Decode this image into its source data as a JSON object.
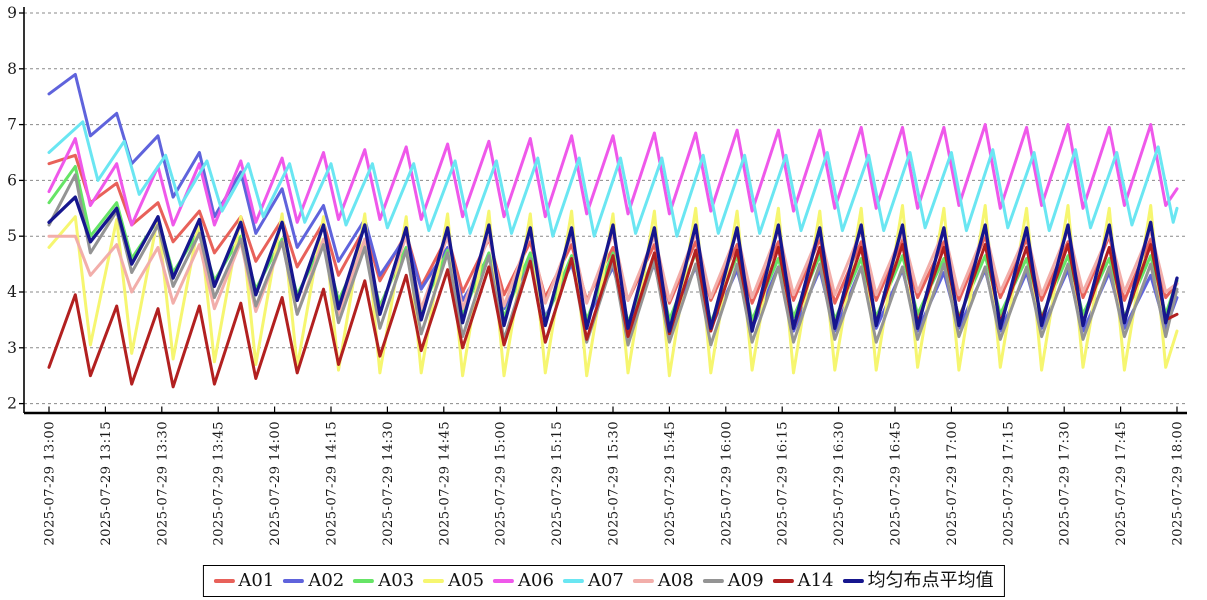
{
  "chart_data": {
    "type": "line",
    "x_axis": {
      "tick_interval_min": 15,
      "total_minutes": 300,
      "labels": [
        "2025-07-29 13:00",
        "2025-07-29 13:15",
        "2025-07-29 13:30",
        "2025-07-29 13:45",
        "2025-07-29 14:00",
        "2025-07-29 14:15",
        "2025-07-29 14:30",
        "2025-07-29 14:45",
        "2025-07-29 15:00",
        "2025-07-29 15:15",
        "2025-07-29 15:30",
        "2025-07-29 15:45",
        "2025-07-29 16:00",
        "2025-07-29 16:15",
        "2025-07-29 16:30",
        "2025-07-29 16:45",
        "2025-07-29 17:00",
        "2025-07-29 17:15",
        "2025-07-29 17:30",
        "2025-07-29 17:45",
        "2025-07-29 18:00"
      ]
    },
    "y_axis": {
      "min": 2,
      "max": 9,
      "ticks": [
        "2",
        "3",
        "4",
        "5",
        "6",
        "7",
        "8",
        "9"
      ]
    },
    "grid": "horizontal-dashed",
    "grid_color": "#8a8a8a",
    "axis_color": "#000000",
    "legend_position": "bottom",
    "peak_times": [
      7,
      18,
      29,
      40,
      51,
      62,
      73,
      84,
      95,
      106,
      117,
      128,
      139,
      150,
      161,
      172,
      183,
      194,
      205,
      216,
      227,
      238,
      249,
      260,
      271,
      282,
      293
    ],
    "trough_times": [
      11,
      22,
      33,
      44,
      55,
      66,
      77,
      88,
      99,
      110,
      121,
      132,
      143,
      154,
      165,
      176,
      187,
      198,
      209,
      220,
      231,
      242,
      253,
      264,
      275,
      286,
      297
    ],
    "series": [
      {
        "name": "A01",
        "color": "#e8615a",
        "width": 3,
        "phase_shift_min": 0,
        "start": 6.3,
        "peaks": [
          6.45,
          5.95,
          5.6,
          5.45,
          5.35,
          5.3,
          5.25,
          5.15,
          5.05,
          5.0,
          4.95,
          4.9,
          4.85,
          4.8,
          4.85,
          4.9,
          4.85,
          4.9,
          4.95,
          4.9,
          4.95,
          4.9,
          5.0,
          4.95,
          4.9,
          5.0,
          4.95
        ],
        "troughs": [
          5.6,
          5.2,
          4.9,
          4.7,
          4.55,
          4.45,
          4.3,
          4.2,
          4.1,
          4.0,
          3.95,
          3.9,
          3.85,
          3.85,
          3.8,
          3.85,
          3.8,
          3.85,
          3.8,
          3.85,
          3.9,
          3.85,
          3.9,
          3.85,
          3.9,
          3.85,
          3.9
        ],
        "end": 4.15
      },
      {
        "name": "A02",
        "color": "#5f63dc",
        "width": 3,
        "phase_shift_min": 0,
        "start": 7.55,
        "peaks": [
          7.9,
          7.2,
          6.8,
          6.5,
          6.15,
          5.85,
          5.55,
          5.3,
          5.0,
          4.8,
          4.65,
          4.55,
          4.5,
          4.45,
          4.5,
          4.45,
          4.4,
          4.45,
          4.4,
          4.45,
          4.4,
          4.35,
          4.4,
          4.35,
          4.4,
          4.35,
          4.3
        ],
        "troughs": [
          6.8,
          6.3,
          5.7,
          5.35,
          5.05,
          4.8,
          4.55,
          4.3,
          4.05,
          3.85,
          3.7,
          3.55,
          3.5,
          3.45,
          3.4,
          3.35,
          3.35,
          3.3,
          3.3,
          3.35,
          3.3,
          3.35,
          3.3,
          3.35,
          3.3,
          3.35,
          3.35
        ],
        "end": 3.9
      },
      {
        "name": "A03",
        "color": "#66e466",
        "width": 3,
        "phase_shift_min": 0,
        "start": 5.6,
        "peaks": [
          6.25,
          5.6,
          5.3,
          5.1,
          5.0,
          4.95,
          4.9,
          4.85,
          4.8,
          4.75,
          4.7,
          4.7,
          4.65,
          4.7,
          4.65,
          4.7,
          4.65,
          4.6,
          4.65,
          4.6,
          4.65,
          4.6,
          4.65,
          4.6,
          4.65,
          4.6,
          4.65
        ],
        "troughs": [
          5.0,
          4.6,
          4.35,
          4.2,
          4.05,
          3.95,
          3.85,
          3.75,
          3.65,
          3.6,
          3.55,
          3.5,
          3.5,
          3.45,
          3.5,
          3.45,
          3.5,
          3.55,
          3.5,
          3.55,
          3.6,
          3.55,
          3.6,
          3.55,
          3.6,
          3.55,
          3.6
        ],
        "end": 4.2
      },
      {
        "name": "A05",
        "color": "#f6f670",
        "width": 3,
        "phase_shift_min": 0,
        "start": 4.8,
        "peaks": [
          5.35,
          5.3,
          5.35,
          5.3,
          5.35,
          5.4,
          5.35,
          5.4,
          5.35,
          5.4,
          5.45,
          5.4,
          5.45,
          5.4,
          5.45,
          5.5,
          5.45,
          5.5,
          5.45,
          5.5,
          5.55,
          5.5,
          5.55,
          5.5,
          5.55,
          5.5,
          5.55
        ],
        "troughs": [
          3.05,
          2.9,
          2.8,
          2.75,
          2.7,
          2.65,
          2.6,
          2.55,
          2.55,
          2.5,
          2.5,
          2.55,
          2.5,
          2.55,
          2.5,
          2.55,
          2.6,
          2.55,
          2.6,
          2.6,
          2.65,
          2.6,
          2.65,
          2.6,
          2.65,
          2.6,
          2.65
        ],
        "end": 3.3
      },
      {
        "name": "A06",
        "color": "#ef58ea",
        "width": 3,
        "phase_shift_min": 0,
        "start": 5.8,
        "peaks": [
          6.75,
          6.3,
          6.25,
          6.3,
          6.35,
          6.4,
          6.5,
          6.55,
          6.6,
          6.65,
          6.7,
          6.75,
          6.8,
          6.8,
          6.85,
          6.85,
          6.9,
          6.9,
          6.9,
          6.95,
          6.95,
          6.95,
          7.0,
          6.95,
          7.0,
          6.95,
          7.0
        ],
        "troughs": [
          5.55,
          5.2,
          5.2,
          5.2,
          5.25,
          5.25,
          5.3,
          5.3,
          5.3,
          5.35,
          5.35,
          5.35,
          5.4,
          5.4,
          5.4,
          5.45,
          5.45,
          5.45,
          5.5,
          5.5,
          5.5,
          5.55,
          5.5,
          5.55,
          5.5,
          5.55,
          5.55
        ],
        "end": 5.85
      },
      {
        "name": "A07",
        "color": "#6ae6f2",
        "width": 3,
        "phase_shift_min": 2,
        "start": 6.5,
        "peaks": [
          7.05,
          6.7,
          6.45,
          6.35,
          6.3,
          6.3,
          6.3,
          6.3,
          6.3,
          6.35,
          6.35,
          6.4,
          6.4,
          6.4,
          6.4,
          6.45,
          6.45,
          6.45,
          6.5,
          6.45,
          6.5,
          6.5,
          6.55,
          6.5,
          6.55,
          6.5,
          6.6
        ],
        "troughs": [
          6.0,
          5.75,
          5.55,
          5.45,
          5.35,
          5.25,
          5.2,
          5.15,
          5.1,
          5.05,
          5.05,
          5.0,
          5.0,
          5.05,
          5.0,
          5.05,
          5.05,
          5.1,
          5.1,
          5.1,
          5.15,
          5.1,
          5.15,
          5.1,
          5.15,
          5.2,
          5.25
        ],
        "end": 5.5
      },
      {
        "name": "A08",
        "color": "#f2aeaa",
        "width": 3,
        "phase_shift_min": 0,
        "start": 5.0,
        "peaks": [
          5.0,
          4.85,
          4.8,
          4.85,
          4.9,
          4.9,
          4.95,
          4.95,
          5.0,
          5.0,
          5.0,
          5.05,
          5.0,
          5.05,
          5.0,
          5.05,
          5.05,
          5.1,
          5.05,
          5.1,
          5.05,
          5.1,
          5.1,
          5.05,
          5.1,
          5.05,
          5.1
        ],
        "troughs": [
          4.3,
          4.0,
          3.8,
          3.7,
          3.65,
          3.6,
          3.6,
          3.65,
          3.7,
          3.7,
          3.75,
          3.8,
          3.8,
          3.85,
          3.85,
          3.9,
          3.9,
          3.95,
          3.95,
          3.95,
          4.0,
          3.95,
          4.0,
          3.95,
          4.0,
          4.0,
          4.0
        ],
        "end": 4.15
      },
      {
        "name": "A09",
        "color": "#949494",
        "width": 3,
        "phase_shift_min": 0,
        "start": 5.2,
        "peaks": [
          6.1,
          5.45,
          5.2,
          5.05,
          4.95,
          4.9,
          4.85,
          4.8,
          4.75,
          4.7,
          4.65,
          4.6,
          4.6,
          4.55,
          4.55,
          4.5,
          4.5,
          4.45,
          4.5,
          4.45,
          4.45,
          4.5,
          4.45,
          4.45,
          4.5,
          4.45,
          4.5
        ],
        "troughs": [
          4.7,
          4.35,
          4.1,
          3.9,
          3.75,
          3.6,
          3.45,
          3.35,
          3.25,
          3.2,
          3.15,
          3.1,
          3.1,
          3.05,
          3.1,
          3.05,
          3.1,
          3.1,
          3.15,
          3.1,
          3.15,
          3.2,
          3.15,
          3.2,
          3.15,
          3.2,
          3.2
        ],
        "end": 4.05
      },
      {
        "name": "A14",
        "color": "#b22020",
        "width": 3,
        "phase_shift_min": 0,
        "start": 2.65,
        "peaks": [
          3.95,
          3.75,
          3.7,
          3.75,
          3.8,
          3.9,
          4.05,
          4.2,
          4.3,
          4.4,
          4.45,
          4.55,
          4.6,
          4.65,
          4.7,
          4.75,
          4.75,
          4.8,
          4.8,
          4.8,
          4.85,
          4.8,
          4.85,
          4.8,
          4.85,
          4.8,
          4.85
        ],
        "troughs": [
          2.5,
          2.35,
          2.3,
          2.35,
          2.45,
          2.55,
          2.7,
          2.85,
          2.95,
          3.0,
          3.05,
          3.1,
          3.15,
          3.2,
          3.25,
          3.3,
          3.35,
          3.35,
          3.4,
          3.45,
          3.45,
          3.5,
          3.45,
          3.5,
          3.45,
          3.5,
          3.5
        ],
        "end": 3.6
      },
      {
        "name": "均匀布点平均值",
        "color": "#16168e",
        "width": 3.3,
        "phase_shift_min": 0,
        "start": 5.25,
        "peaks": [
          5.7,
          5.5,
          5.35,
          5.3,
          5.25,
          5.25,
          5.2,
          5.2,
          5.15,
          5.15,
          5.2,
          5.15,
          5.15,
          5.2,
          5.15,
          5.2,
          5.15,
          5.2,
          5.15,
          5.2,
          5.2,
          5.15,
          5.2,
          5.15,
          5.2,
          5.2,
          5.25
        ],
        "troughs": [
          4.9,
          4.5,
          4.25,
          4.1,
          3.95,
          3.85,
          3.7,
          3.6,
          3.5,
          3.45,
          3.4,
          3.4,
          3.35,
          3.35,
          3.3,
          3.35,
          3.3,
          3.35,
          3.35,
          3.4,
          3.35,
          3.4,
          3.35,
          3.4,
          3.4,
          3.45,
          3.45
        ],
        "end": 4.25
      }
    ]
  }
}
